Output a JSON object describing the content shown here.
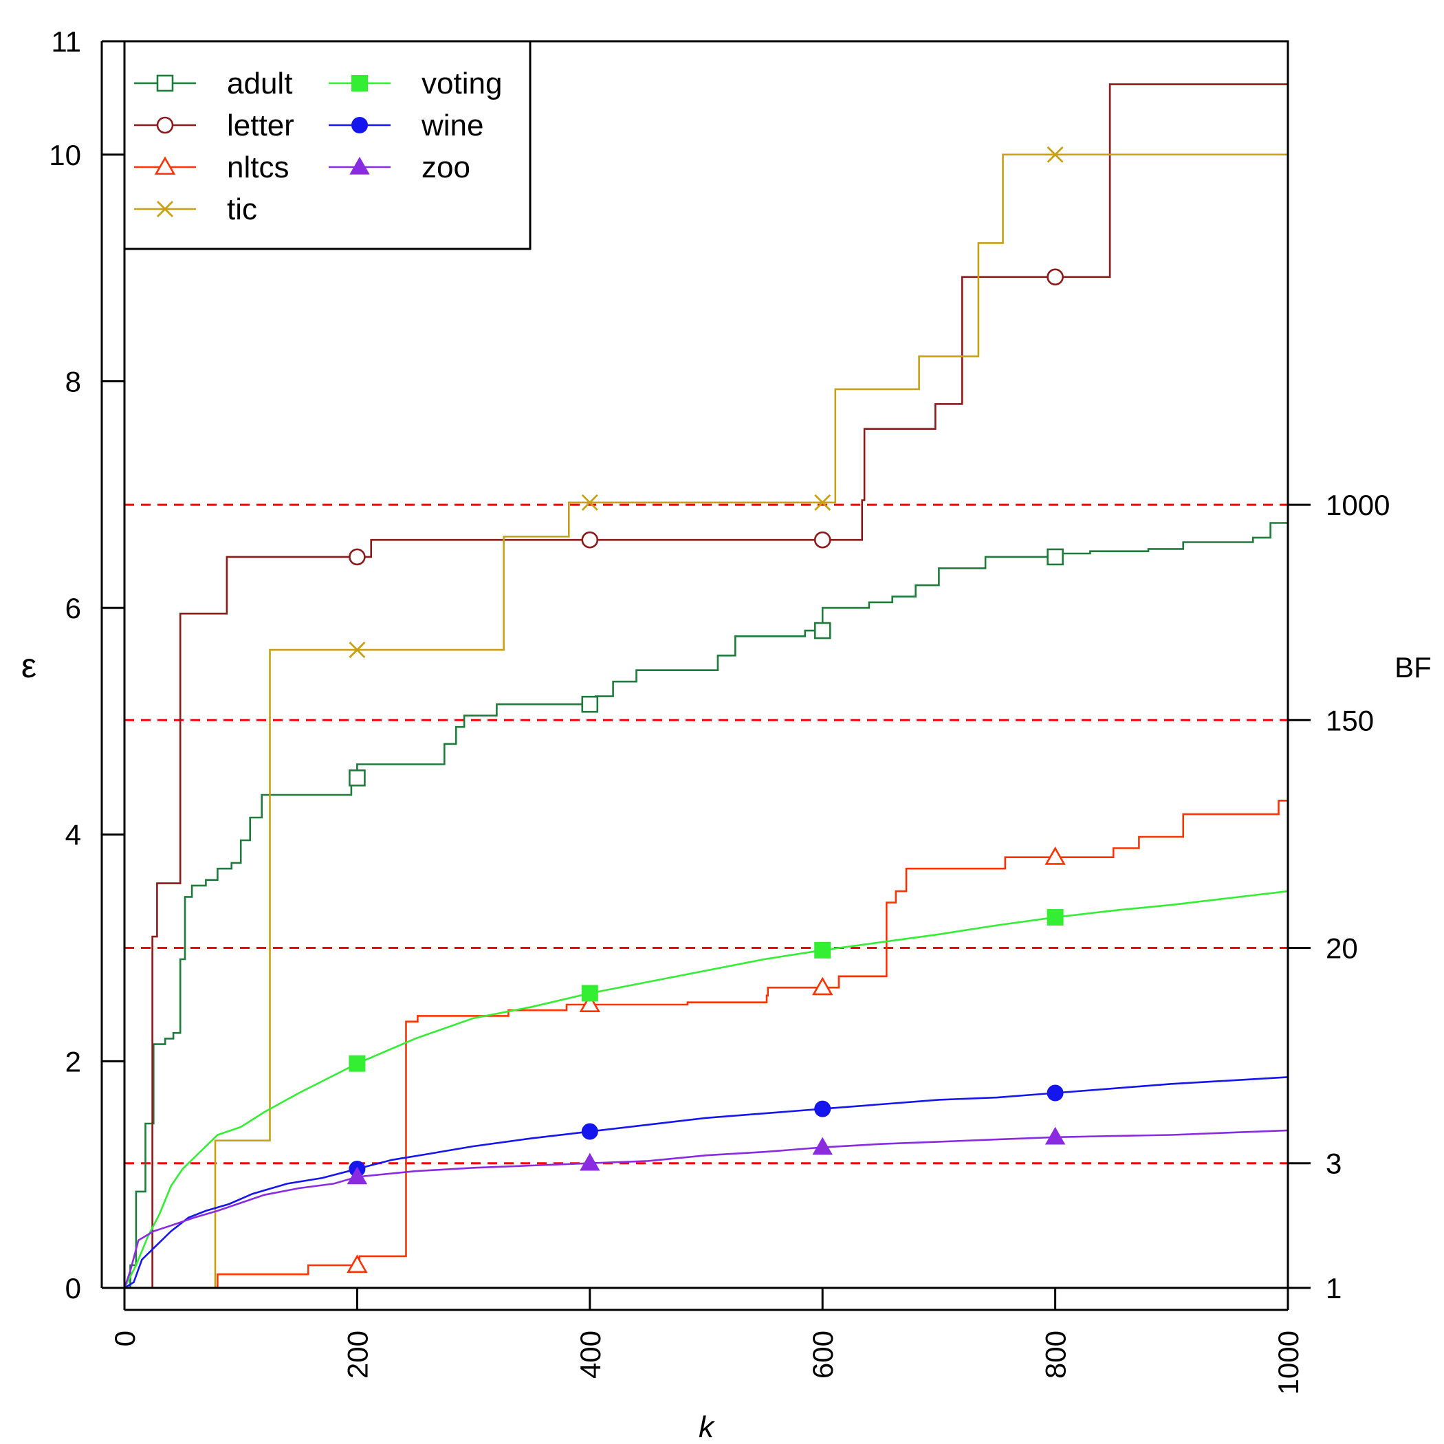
{
  "chart_data": {
    "type": "line",
    "title": "",
    "xlabel": "k",
    "ylabel": "ε",
    "y2label": "BF",
    "xlim": [
      0,
      1000
    ],
    "ylim": [
      0,
      11
    ],
    "x_ticks": [
      0,
      200,
      400,
      600,
      800,
      1000
    ],
    "y_ticks": [
      0,
      2,
      4,
      6,
      8,
      10,
      11
    ],
    "bf_reference_lines": [
      {
        "bf": "1",
        "epsilon": 0
      },
      {
        "bf": "3",
        "epsilon": 1.1
      },
      {
        "bf": "20",
        "epsilon": 3.0
      },
      {
        "bf": "150",
        "epsilon": 5.01
      },
      {
        "bf": "1000",
        "epsilon": 6.91
      }
    ],
    "reference_line_color": "#ff0000",
    "legend_position": "top-left",
    "series": [
      {
        "name": "adult",
        "color": "#1e7b3c",
        "marker": "square-open",
        "step": true,
        "points": [
          [
            0,
            0
          ],
          [
            5,
            0.2
          ],
          [
            10,
            0.85
          ],
          [
            18,
            1.45
          ],
          [
            25,
            2.15
          ],
          [
            35,
            2.2
          ],
          [
            42,
            2.25
          ],
          [
            48,
            2.9
          ],
          [
            52,
            3.45
          ],
          [
            58,
            3.55
          ],
          [
            70,
            3.6
          ],
          [
            80,
            3.7
          ],
          [
            92,
            3.75
          ],
          [
            100,
            3.95
          ],
          [
            108,
            4.15
          ],
          [
            118,
            4.35
          ],
          [
            140,
            4.35
          ],
          [
            190,
            4.35
          ],
          [
            195,
            4.5
          ],
          [
            200,
            4.62
          ],
          [
            230,
            4.62
          ],
          [
            270,
            4.62
          ],
          [
            275,
            4.8
          ],
          [
            285,
            4.95
          ],
          [
            292,
            5.05
          ],
          [
            320,
            5.15
          ],
          [
            360,
            5.15
          ],
          [
            395,
            5.15
          ],
          [
            405,
            5.22
          ],
          [
            420,
            5.35
          ],
          [
            440,
            5.45
          ],
          [
            500,
            5.45
          ],
          [
            510,
            5.58
          ],
          [
            525,
            5.75
          ],
          [
            560,
            5.75
          ],
          [
            585,
            5.8
          ],
          [
            600,
            6.0
          ],
          [
            640,
            6.05
          ],
          [
            660,
            6.1
          ],
          [
            680,
            6.2
          ],
          [
            700,
            6.35
          ],
          [
            740,
            6.45
          ],
          [
            800,
            6.48
          ],
          [
            830,
            6.5
          ],
          [
            880,
            6.52
          ],
          [
            910,
            6.58
          ],
          [
            970,
            6.62
          ],
          [
            985,
            6.75
          ],
          [
            1000,
            6.75
          ]
        ]
      },
      {
        "name": "letter",
        "color": "#8b1a1a",
        "marker": "circle-open",
        "step": true,
        "points": [
          [
            0,
            0
          ],
          [
            22,
            0
          ],
          [
            24,
            3.1
          ],
          [
            28,
            3.57
          ],
          [
            45,
            3.57
          ],
          [
            48,
            5.95
          ],
          [
            85,
            5.95
          ],
          [
            88,
            6.45
          ],
          [
            200,
            6.45
          ],
          [
            212,
            6.6
          ],
          [
            400,
            6.6
          ],
          [
            600,
            6.6
          ],
          [
            632,
            6.6
          ],
          [
            634,
            6.95
          ],
          [
            636,
            7.58
          ],
          [
            695,
            7.58
          ],
          [
            697,
            7.8
          ],
          [
            718,
            7.8
          ],
          [
            720,
            8.92
          ],
          [
            800,
            8.92
          ],
          [
            845,
            8.92
          ],
          [
            847,
            10.62
          ],
          [
            1000,
            10.62
          ]
        ]
      },
      {
        "name": "nltcs",
        "color": "#ff3300",
        "marker": "triangle-open",
        "step": true,
        "points": [
          [
            0,
            0
          ],
          [
            78,
            0
          ],
          [
            80,
            0.12
          ],
          [
            156,
            0.12
          ],
          [
            158,
            0.2
          ],
          [
            200,
            0.2
          ],
          [
            202,
            0.28
          ],
          [
            240,
            0.28
          ],
          [
            242,
            2.35
          ],
          [
            252,
            2.4
          ],
          [
            330,
            2.45
          ],
          [
            380,
            2.5
          ],
          [
            400,
            2.5
          ],
          [
            484,
            2.52
          ],
          [
            552,
            2.58
          ],
          [
            553,
            2.65
          ],
          [
            600,
            2.65
          ],
          [
            614,
            2.75
          ],
          [
            652,
            2.75
          ],
          [
            655,
            3.4
          ],
          [
            663,
            3.5
          ],
          [
            672,
            3.7
          ],
          [
            755,
            3.7
          ],
          [
            757,
            3.8
          ],
          [
            800,
            3.8
          ],
          [
            850,
            3.88
          ],
          [
            870,
            3.88
          ],
          [
            872,
            3.98
          ],
          [
            908,
            3.98
          ],
          [
            910,
            4.18
          ],
          [
            990,
            4.18
          ],
          [
            992,
            4.3
          ],
          [
            1000,
            4.3
          ]
        ]
      },
      {
        "name": "tic",
        "color": "#c8a014",
        "marker": "x",
        "step": true,
        "points": [
          [
            0,
            0
          ],
          [
            76,
            0
          ],
          [
            78,
            1.3
          ],
          [
            122,
            1.3
          ],
          [
            125,
            5.63
          ],
          [
            324,
            5.63
          ],
          [
            326,
            6.63
          ],
          [
            380,
            6.63
          ],
          [
            382,
            6.93
          ],
          [
            608,
            6.93
          ],
          [
            611,
            7.93
          ],
          [
            680,
            7.93
          ],
          [
            683,
            8.22
          ],
          [
            730,
            8.22
          ],
          [
            734,
            9.22
          ],
          [
            752,
            9.22
          ],
          [
            755,
            10.0
          ],
          [
            1000,
            10.0
          ]
        ]
      },
      {
        "name": "voting",
        "color": "#33ee33",
        "marker": "square-filled",
        "step": false,
        "points": [
          [
            0,
            0
          ],
          [
            10,
            0.2
          ],
          [
            20,
            0.45
          ],
          [
            30,
            0.65
          ],
          [
            40,
            0.9
          ],
          [
            50,
            1.05
          ],
          [
            60,
            1.15
          ],
          [
            70,
            1.25
          ],
          [
            80,
            1.35
          ],
          [
            100,
            1.42
          ],
          [
            120,
            1.55
          ],
          [
            150,
            1.72
          ],
          [
            175,
            1.85
          ],
          [
            200,
            1.98
          ],
          [
            250,
            2.2
          ],
          [
            300,
            2.38
          ],
          [
            350,
            2.48
          ],
          [
            400,
            2.6
          ],
          [
            450,
            2.7
          ],
          [
            500,
            2.8
          ],
          [
            550,
            2.9
          ],
          [
            600,
            2.98
          ],
          [
            650,
            3.05
          ],
          [
            700,
            3.12
          ],
          [
            750,
            3.2
          ],
          [
            800,
            3.27
          ],
          [
            850,
            3.33
          ],
          [
            900,
            3.38
          ],
          [
            950,
            3.44
          ],
          [
            1000,
            3.5
          ]
        ]
      },
      {
        "name": "wine",
        "color": "#1515ee",
        "marker": "circle-filled",
        "step": false,
        "points": [
          [
            0,
            0
          ],
          [
            8,
            0.05
          ],
          [
            15,
            0.25
          ],
          [
            25,
            0.35
          ],
          [
            40,
            0.5
          ],
          [
            55,
            0.62
          ],
          [
            70,
            0.68
          ],
          [
            90,
            0.74
          ],
          [
            110,
            0.83
          ],
          [
            140,
            0.92
          ],
          [
            170,
            0.97
          ],
          [
            200,
            1.05
          ],
          [
            230,
            1.13
          ],
          [
            260,
            1.18
          ],
          [
            300,
            1.25
          ],
          [
            350,
            1.32
          ],
          [
            400,
            1.38
          ],
          [
            450,
            1.44
          ],
          [
            500,
            1.5
          ],
          [
            550,
            1.54
          ],
          [
            600,
            1.58
          ],
          [
            650,
            1.62
          ],
          [
            700,
            1.66
          ],
          [
            750,
            1.68
          ],
          [
            800,
            1.72
          ],
          [
            850,
            1.76
          ],
          [
            900,
            1.8
          ],
          [
            950,
            1.83
          ],
          [
            1000,
            1.86
          ]
        ]
      },
      {
        "name": "zoo",
        "color": "#8a2be2",
        "marker": "triangle-filled",
        "step": false,
        "points": [
          [
            0,
            0
          ],
          [
            5,
            0.15
          ],
          [
            12,
            0.42
          ],
          [
            25,
            0.5
          ],
          [
            40,
            0.55
          ],
          [
            60,
            0.62
          ],
          [
            80,
            0.68
          ],
          [
            100,
            0.75
          ],
          [
            120,
            0.82
          ],
          [
            150,
            0.88
          ],
          [
            180,
            0.92
          ],
          [
            200,
            0.98
          ],
          [
            250,
            1.03
          ],
          [
            300,
            1.06
          ],
          [
            350,
            1.08
          ],
          [
            400,
            1.1
          ],
          [
            450,
            1.12
          ],
          [
            500,
            1.17
          ],
          [
            550,
            1.2
          ],
          [
            600,
            1.24
          ],
          [
            650,
            1.27
          ],
          [
            700,
            1.29
          ],
          [
            750,
            1.31
          ],
          [
            800,
            1.33
          ],
          [
            850,
            1.34
          ],
          [
            900,
            1.35
          ],
          [
            950,
            1.37
          ],
          [
            1000,
            1.39
          ]
        ]
      }
    ],
    "marker_x": [
      200,
      400,
      600,
      800
    ]
  }
}
